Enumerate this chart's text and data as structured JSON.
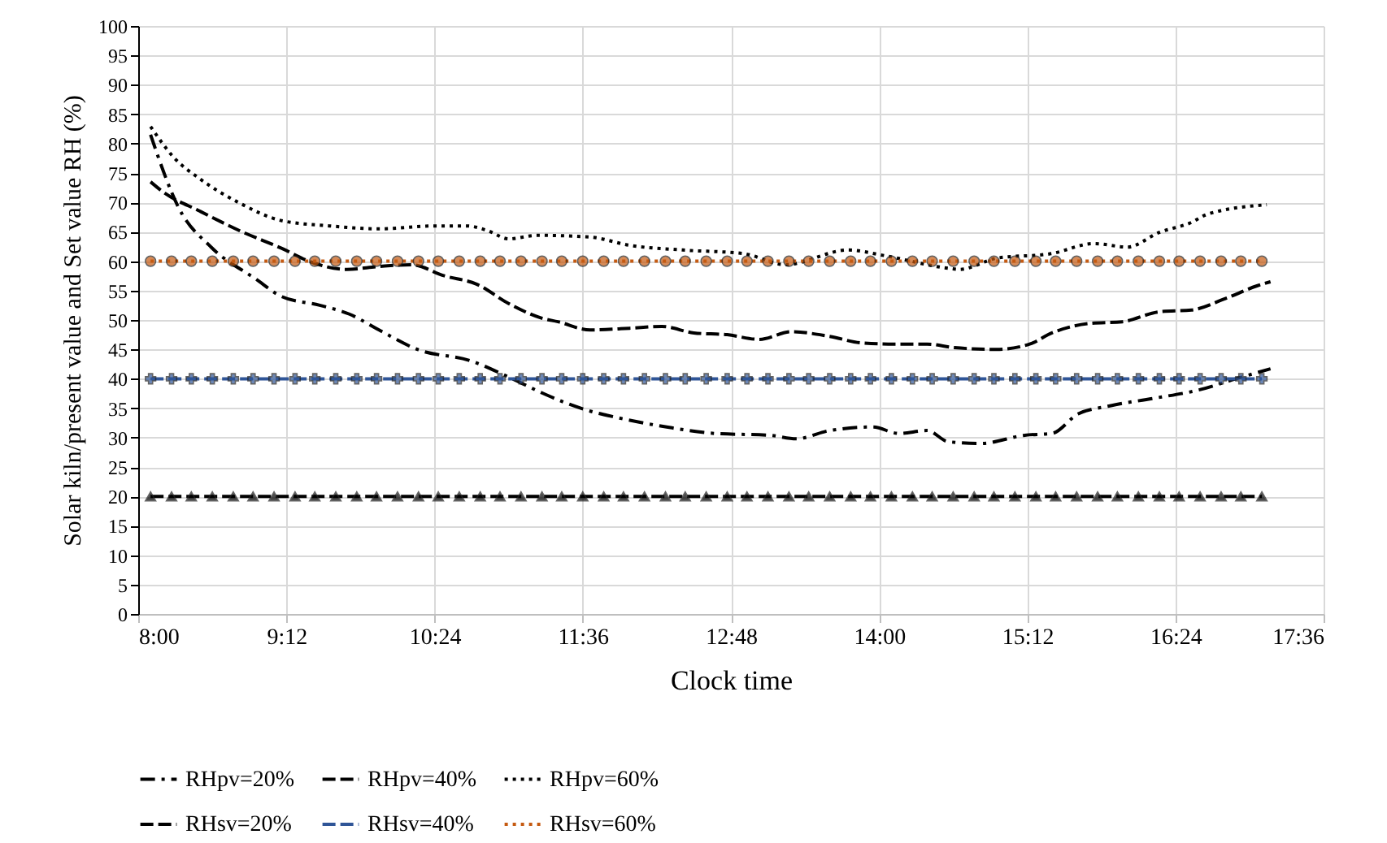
{
  "chart_data": {
    "type": "line",
    "xlabel": "Clock time",
    "ylabel": "Solar kiln/present value and Set value RH (%)",
    "x": [
      8.1,
      8.27,
      8.43,
      8.6,
      8.77,
      8.93,
      9.1,
      9.27,
      9.43,
      9.6,
      9.77,
      9.93,
      10.1,
      10.27,
      10.43,
      10.6,
      10.77,
      10.93,
      11.1,
      11.27,
      11.43,
      11.6,
      11.77,
      11.93,
      12.1,
      12.27,
      12.43,
      12.6,
      12.77,
      12.93,
      13.1,
      13.27,
      13.43,
      13.6,
      13.77,
      13.93,
      14.1,
      14.27,
      14.43,
      14.6,
      14.77,
      14.93,
      15.1,
      15.27,
      15.43,
      15.6,
      15.77,
      15.93,
      16.1,
      16.27,
      16.43,
      16.6,
      16.77,
      16.93,
      17.1
    ],
    "series": [
      {
        "name": "RHpv=20%",
        "color": "#000000",
        "line_style": "dashdot",
        "marker": "none",
        "x": [
          8.1,
          8.33,
          8.59,
          8.95,
          9.16,
          9.47,
          9.71,
          9.95,
          10.26,
          10.7,
          11.0,
          11.27,
          11.45,
          11.66,
          11.88,
          12.28,
          12.67,
          13.11,
          13.33,
          13.6,
          13.95,
          14.16,
          14.39,
          14.56,
          14.82,
          15.18,
          15.4,
          15.61,
          15.87,
          16.23,
          16.59,
          16.89,
          17.17
        ],
        "values": [
          81.5,
          69,
          62.4,
          57,
          54,
          52.5,
          51,
          48.3,
          45,
          43,
          40.3,
          37.6,
          36,
          34.5,
          33.4,
          31.8,
          30.7,
          30.4,
          29.8,
          31.2,
          31.8,
          30.7,
          31.2,
          29.3,
          29,
          30.4,
          30.7,
          34,
          35.4,
          36.7,
          38.1,
          40,
          41.7
        ]
      },
      {
        "name": "RHpv=40%",
        "color": "#000000",
        "line_style": "dashed",
        "marker": "none",
        "x": [
          8.1,
          8.2,
          8.5,
          8.82,
          9.16,
          9.42,
          9.69,
          9.95,
          10.21,
          10.48,
          10.74,
          11.0,
          11.27,
          11.4,
          11.66,
          11.98,
          12.24,
          12.5,
          12.77,
          13.03,
          13.29,
          13.6,
          13.86,
          14.12,
          14.39,
          14.61,
          14.95,
          15.22,
          15.4,
          15.7,
          15.97,
          16.27,
          16.53,
          16.8,
          17.06,
          17.17
        ],
        "values": [
          73.5,
          71.8,
          68.5,
          65.2,
          62.2,
          59.7,
          58.6,
          59.1,
          59.4,
          57.5,
          56.1,
          52.8,
          50.3,
          49.7,
          48.3,
          48.6,
          48.9,
          47.8,
          47.5,
          46.7,
          48,
          47.2,
          46.1,
          45.9,
          45.9,
          45.3,
          45,
          45.9,
          47.8,
          49.4,
          49.7,
          51.4,
          51.7,
          53.6,
          55.8,
          56.5
        ]
      },
      {
        "name": "RHpv=60%",
        "color": "#000000",
        "line_style": "dotted",
        "marker": "none",
        "x": [
          8.1,
          8.29,
          8.5,
          8.82,
          9.16,
          9.55,
          9.95,
          10.4,
          10.66,
          10.83,
          11.0,
          11.23,
          11.66,
          11.98,
          12.41,
          12.9,
          13.24,
          13.75,
          14.03,
          14.56,
          14.65,
          14.95,
          15.4,
          15.74,
          16.01,
          16.27,
          16.53,
          16.66,
          17.14
        ],
        "values": [
          82.9,
          77.6,
          74,
          69.9,
          66.9,
          66,
          65.5,
          66,
          66,
          65.2,
          63.8,
          64.4,
          64.1,
          62.7,
          61.9,
          61.3,
          59.4,
          61.9,
          61,
          58.8,
          58.6,
          60.5,
          61.3,
          63,
          62.4,
          64.9,
          66.6,
          68,
          69.6
        ]
      },
      {
        "name": "RHsv=20%",
        "color": "#000000",
        "line_style": "dashed",
        "marker": "triangle",
        "values": [
          20,
          20,
          20,
          20,
          20,
          20,
          20,
          20,
          20,
          20,
          20,
          20,
          20,
          20,
          20,
          20,
          20,
          20,
          20,
          20,
          20,
          20,
          20,
          20,
          20,
          20,
          20,
          20,
          20,
          20,
          20,
          20,
          20,
          20,
          20,
          20,
          20,
          20,
          20,
          20,
          20,
          20,
          20,
          20,
          20,
          20,
          20,
          20,
          20,
          20,
          20,
          20,
          20,
          20,
          20
        ]
      },
      {
        "name": "RHsv=40%",
        "color": "#2f5597",
        "line_style": "dashed",
        "marker": "cross",
        "values": [
          40,
          40,
          40,
          40,
          40,
          40,
          40,
          40,
          40,
          40,
          40,
          40,
          40,
          40,
          40,
          40,
          40,
          40,
          40,
          40,
          40,
          40,
          40,
          40,
          40,
          40,
          40,
          40,
          40,
          40,
          40,
          40,
          40,
          40,
          40,
          40,
          40,
          40,
          40,
          40,
          40,
          40,
          40,
          40,
          40,
          40,
          40,
          40,
          40,
          40,
          40,
          40,
          40,
          40,
          40
        ]
      },
      {
        "name": "RHsv=60%",
        "color": "#c55a11",
        "line_style": "dotted",
        "marker": "circle",
        "values": [
          60,
          60,
          60,
          60,
          60,
          60,
          60,
          60,
          60,
          60,
          60,
          60,
          60,
          60,
          60,
          60,
          60,
          60,
          60,
          60,
          60,
          60,
          60,
          60,
          60,
          60,
          60,
          60,
          60,
          60,
          60,
          60,
          60,
          60,
          60,
          60,
          60,
          60,
          60,
          60,
          60,
          60,
          60,
          60,
          60,
          60,
          60,
          60,
          60,
          60,
          60,
          60,
          60,
          60,
          60
        ]
      }
    ],
    "xlim": [
      8,
      17.6
    ],
    "xticks": [
      {
        "value": 8,
        "label": "8:00"
      },
      {
        "value": 9.2,
        "label": "9:12"
      },
      {
        "value": 10.4,
        "label": "10:24"
      },
      {
        "value": 11.6,
        "label": "11:36"
      },
      {
        "value": 12.8,
        "label": "12:48"
      },
      {
        "value": 14,
        "label": "14:00"
      },
      {
        "value": 15.2,
        "label": "15:12"
      },
      {
        "value": 16.4,
        "label": "16:24"
      },
      {
        "value": 17.6,
        "label": "17:36"
      }
    ],
    "ylim": [
      0,
      100
    ],
    "yticks": [
      0,
      5,
      10,
      15,
      20,
      25,
      30,
      35,
      40,
      45,
      50,
      55,
      60,
      65,
      70,
      75,
      80,
      85,
      90,
      95,
      100
    ],
    "grid": true,
    "legend": "bottom"
  }
}
